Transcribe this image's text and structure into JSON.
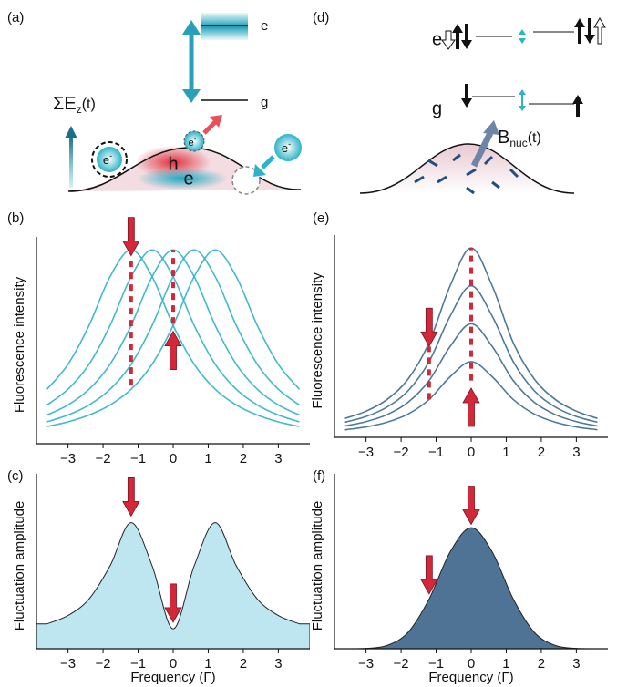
{
  "panel_labels": [
    "(a)",
    "(b)",
    "(c)",
    "(d)",
    "(e)",
    "(f)"
  ],
  "diagram_a": {
    "upper_level": "e",
    "lower_level": "g",
    "field": {
      "symbol": "ΣE",
      "subscript": "z",
      "suffix": "(t)"
    },
    "hole": "h",
    "electron": "e",
    "charge": {
      "symbol": "e",
      "superscript": "-"
    }
  },
  "diagram_d": {
    "upper_level": "e",
    "lower_level": "g",
    "field": {
      "symbol": "B",
      "subscript": "nuc",
      "suffix": "(t)"
    }
  },
  "chart_data": [
    {
      "type": "line",
      "y_label": "Fluorescence intensity",
      "x": [
        -3.6,
        -3,
        -2.4,
        -1.8,
        -1.2,
        -0.6,
        0,
        0.6,
        1.2,
        1.8,
        2.4,
        3,
        3.6
      ],
      "series": [
        {
          "color": "#2bb3c8",
          "values": [
            0.281,
            0.41,
            0.61,
            0.862,
            1,
            0.862,
            0.61,
            0.41,
            0.281,
            0.2,
            0.148,
            0.113,
            0.089
          ]
        },
        {
          "color": "#2bb3c8",
          "values": [
            0.2,
            0.281,
            0.41,
            0.61,
            0.862,
            1,
            0.862,
            0.61,
            0.41,
            0.281,
            0.2,
            0.148,
            0.113
          ]
        },
        {
          "color": "#2bb3c8",
          "values": [
            0.148,
            0.2,
            0.281,
            0.41,
            0.61,
            0.862,
            1,
            0.862,
            0.61,
            0.41,
            0.281,
            0.2,
            0.148
          ]
        },
        {
          "color": "#2bb3c8",
          "values": [
            0.113,
            0.148,
            0.2,
            0.281,
            0.41,
            0.61,
            0.862,
            1,
            0.862,
            0.61,
            0.41,
            0.281,
            0.2
          ]
        },
        {
          "color": "#2bb3c8",
          "values": [
            0.089,
            0.113,
            0.148,
            0.2,
            0.281,
            0.41,
            0.61,
            0.862,
            1,
            0.862,
            0.61,
            0.41,
            0.281
          ]
        }
      ],
      "arrows": [
        {
          "x": -1.2,
          "y": 0.97,
          "direction": "down"
        },
        {
          "x": 0,
          "y": 0.58,
          "direction": "up"
        }
      ],
      "dashed": [
        {
          "x": -1.2,
          "y0": 0.3,
          "y1": 0.95
        },
        {
          "x": 0,
          "y0": 0.62,
          "y1": 1
        }
      ],
      "xlim": [
        -3.9,
        3.9
      ],
      "ylim": [
        0,
        1.02
      ],
      "xticks": [
        {
          "value": -3,
          "label": "−3"
        },
        {
          "value": -2,
          "label": "−2"
        },
        {
          "value": -1,
          "label": "−1"
        },
        0,
        1,
        2,
        3
      ]
    },
    {
      "type": "area",
      "y_label": "Fluctuation amplitude",
      "x_label": "Frequency (Γ)",
      "x": [
        -3.6,
        -3,
        -2.4,
        -1.8,
        -1.2,
        -0.6,
        0,
        0.6,
        1.2,
        1.8,
        2.4,
        3,
        3.6
      ],
      "series": [
        {
          "color": "#bde6f0",
          "values": [
            0.15,
            0.2,
            0.3,
            0.5,
            0.76,
            0.5,
            0.12,
            0.5,
            0.76,
            0.5,
            0.3,
            0.2,
            0.15
          ]
        }
      ],
      "arrows": [
        {
          "x": -1.2,
          "y": 0.8,
          "direction": "down"
        },
        {
          "x": 0,
          "y": 0.16,
          "direction": "down"
        }
      ],
      "xlim": [
        -3.9,
        3.9
      ],
      "ylim": [
        0,
        1
      ],
      "xticks": [
        {
          "value": -3,
          "label": "−3"
        },
        {
          "value": -2,
          "label": "−2"
        },
        {
          "value": -1,
          "label": "−1"
        },
        0,
        1,
        2,
        3
      ]
    },
    {
      "type": "line",
      "y_label": "Fluorescence intensity",
      "x": [
        -3.6,
        -3,
        -2.4,
        -1.8,
        -1.2,
        -0.6,
        0,
        0.6,
        1.2,
        1.8,
        2.4,
        3,
        3.6
      ],
      "series": [
        {
          "color": "#3a6a8e",
          "values": [
            0.1,
            0.138,
            0.2,
            0.308,
            0.5,
            0.8,
            1,
            0.8,
            0.5,
            0.308,
            0.2,
            0.138,
            0.1
          ]
        },
        {
          "color": "#3a6a8e",
          "values": [
            0.08,
            0.11,
            0.16,
            0.246,
            0.4,
            0.64,
            0.8,
            0.64,
            0.4,
            0.246,
            0.16,
            0.11,
            0.08
          ]
        },
        {
          "color": "#3a6a8e",
          "values": [
            0.06,
            0.083,
            0.12,
            0.185,
            0.3,
            0.48,
            0.6,
            0.48,
            0.3,
            0.185,
            0.12,
            0.083,
            0.06
          ]
        },
        {
          "color": "#3a6a8e",
          "values": [
            0.04,
            0.055,
            0.08,
            0.123,
            0.2,
            0.32,
            0.4,
            0.32,
            0.2,
            0.123,
            0.08,
            0.055,
            0.04
          ]
        }
      ],
      "arrows": [
        {
          "x": -1.2,
          "y": 0.48,
          "direction": "down"
        },
        {
          "x": 0,
          "y": 0.26,
          "direction": "up"
        }
      ],
      "dashed": [
        {
          "x": -1.2,
          "y0": 0.2,
          "y1": 0.48
        },
        {
          "x": 0,
          "y0": 0.3,
          "y1": 1
        }
      ],
      "xlim": [
        -3.9,
        3.9
      ],
      "ylim": [
        0,
        1.02
      ],
      "xticks": [
        {
          "value": -3,
          "label": "−3"
        },
        {
          "value": -2,
          "label": "−2"
        },
        {
          "value": -1,
          "label": "−1"
        },
        0,
        1,
        2,
        3
      ]
    },
    {
      "type": "area",
      "y_label": "Fluctuation amplitude",
      "x_label": "Frequency (Γ)",
      "x": [
        -3.6,
        -3,
        -2.4,
        -1.8,
        -1.2,
        -0.6,
        0,
        0.6,
        1.2,
        1.8,
        2.4,
        3,
        3.6
      ],
      "series": [
        {
          "color": "#4e7394",
          "values": [
            0,
            0.002,
            0.02,
            0.099,
            0.3,
            0.584,
            0.73,
            0.584,
            0.3,
            0.099,
            0.02,
            0.002,
            0
          ]
        }
      ],
      "arrows": [
        {
          "x": 0,
          "y": 0.75,
          "direction": "down"
        },
        {
          "x": -1.2,
          "y": 0.33,
          "direction": "down"
        }
      ],
      "xlim": [
        -3.9,
        3.9
      ],
      "ylim": [
        0,
        1
      ],
      "xticks": [
        {
          "value": -3,
          "label": "−3"
        },
        {
          "value": -2,
          "label": "−2"
        },
        {
          "value": -1,
          "label": "−1"
        },
        0,
        1,
        2,
        3
      ]
    }
  ]
}
